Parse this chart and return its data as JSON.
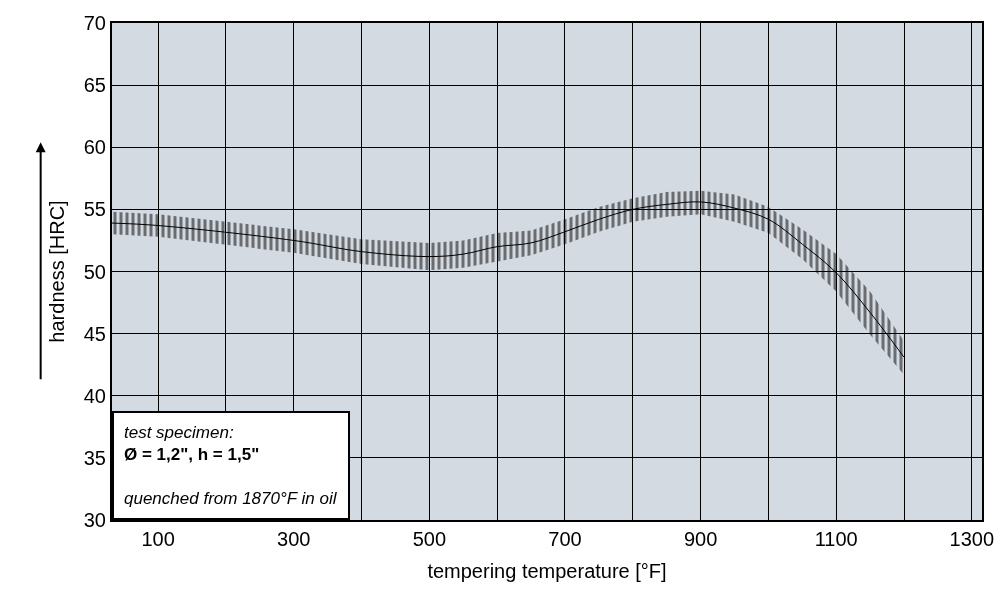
{
  "chart_data": {
    "type": "line",
    "xlabel": "tempering temperature [°F]",
    "ylabel": "hardness [HRC]",
    "x": [
      32,
      100,
      300,
      400,
      500,
      550,
      600,
      650,
      700,
      750,
      800,
      850,
      900,
      950,
      1000,
      1050,
      1100,
      1150,
      1200
    ],
    "series": [
      {
        "color": "#000000",
        "values": [
          53.9,
          53.7,
          52.5,
          51.6,
          51.2,
          51.4,
          52.0,
          52.3,
          53.2,
          54.2,
          55.0,
          55.4,
          55.6,
          55.1,
          54.2,
          52.2,
          49.9,
          46.7,
          43.1
        ],
        "lower": [
          53.0,
          52.8,
          51.5,
          50.6,
          50.1,
          50.3,
          50.8,
          51.3,
          52.2,
          53.2,
          54.0,
          54.4,
          54.6,
          54.0,
          53.1,
          51.0,
          48.4,
          44.9,
          41.7
        ],
        "upper": [
          54.8,
          54.6,
          53.4,
          52.6,
          52.3,
          52.5,
          53.1,
          53.3,
          54.2,
          55.2,
          55.9,
          56.4,
          56.5,
          56.2,
          55.2,
          53.4,
          51.4,
          48.4,
          44.4
        ]
      }
    ],
    "xlim": [
      32,
      1315
    ],
    "ylim": [
      30,
      70
    ],
    "xticks": [
      100,
      {
        "value": 200,
        "label": null
      },
      300,
      {
        "value": 400,
        "label": null
      },
      500,
      {
        "value": 600,
        "label": null
      },
      700,
      {
        "value": 800,
        "label": null
      },
      900,
      {
        "value": 1000,
        "label": null
      },
      1100,
      {
        "value": 1200,
        "label": null
      },
      1300
    ],
    "yticks": [
      30,
      35,
      40,
      45,
      50,
      55,
      60,
      65,
      70
    ],
    "grid": true,
    "marker": "none",
    "line_style": "solid",
    "annotations": [
      "test specimen:",
      "Ø = 1,2\", h = 1,5\"",
      "quenched from 1870°F in oil"
    ]
  }
}
